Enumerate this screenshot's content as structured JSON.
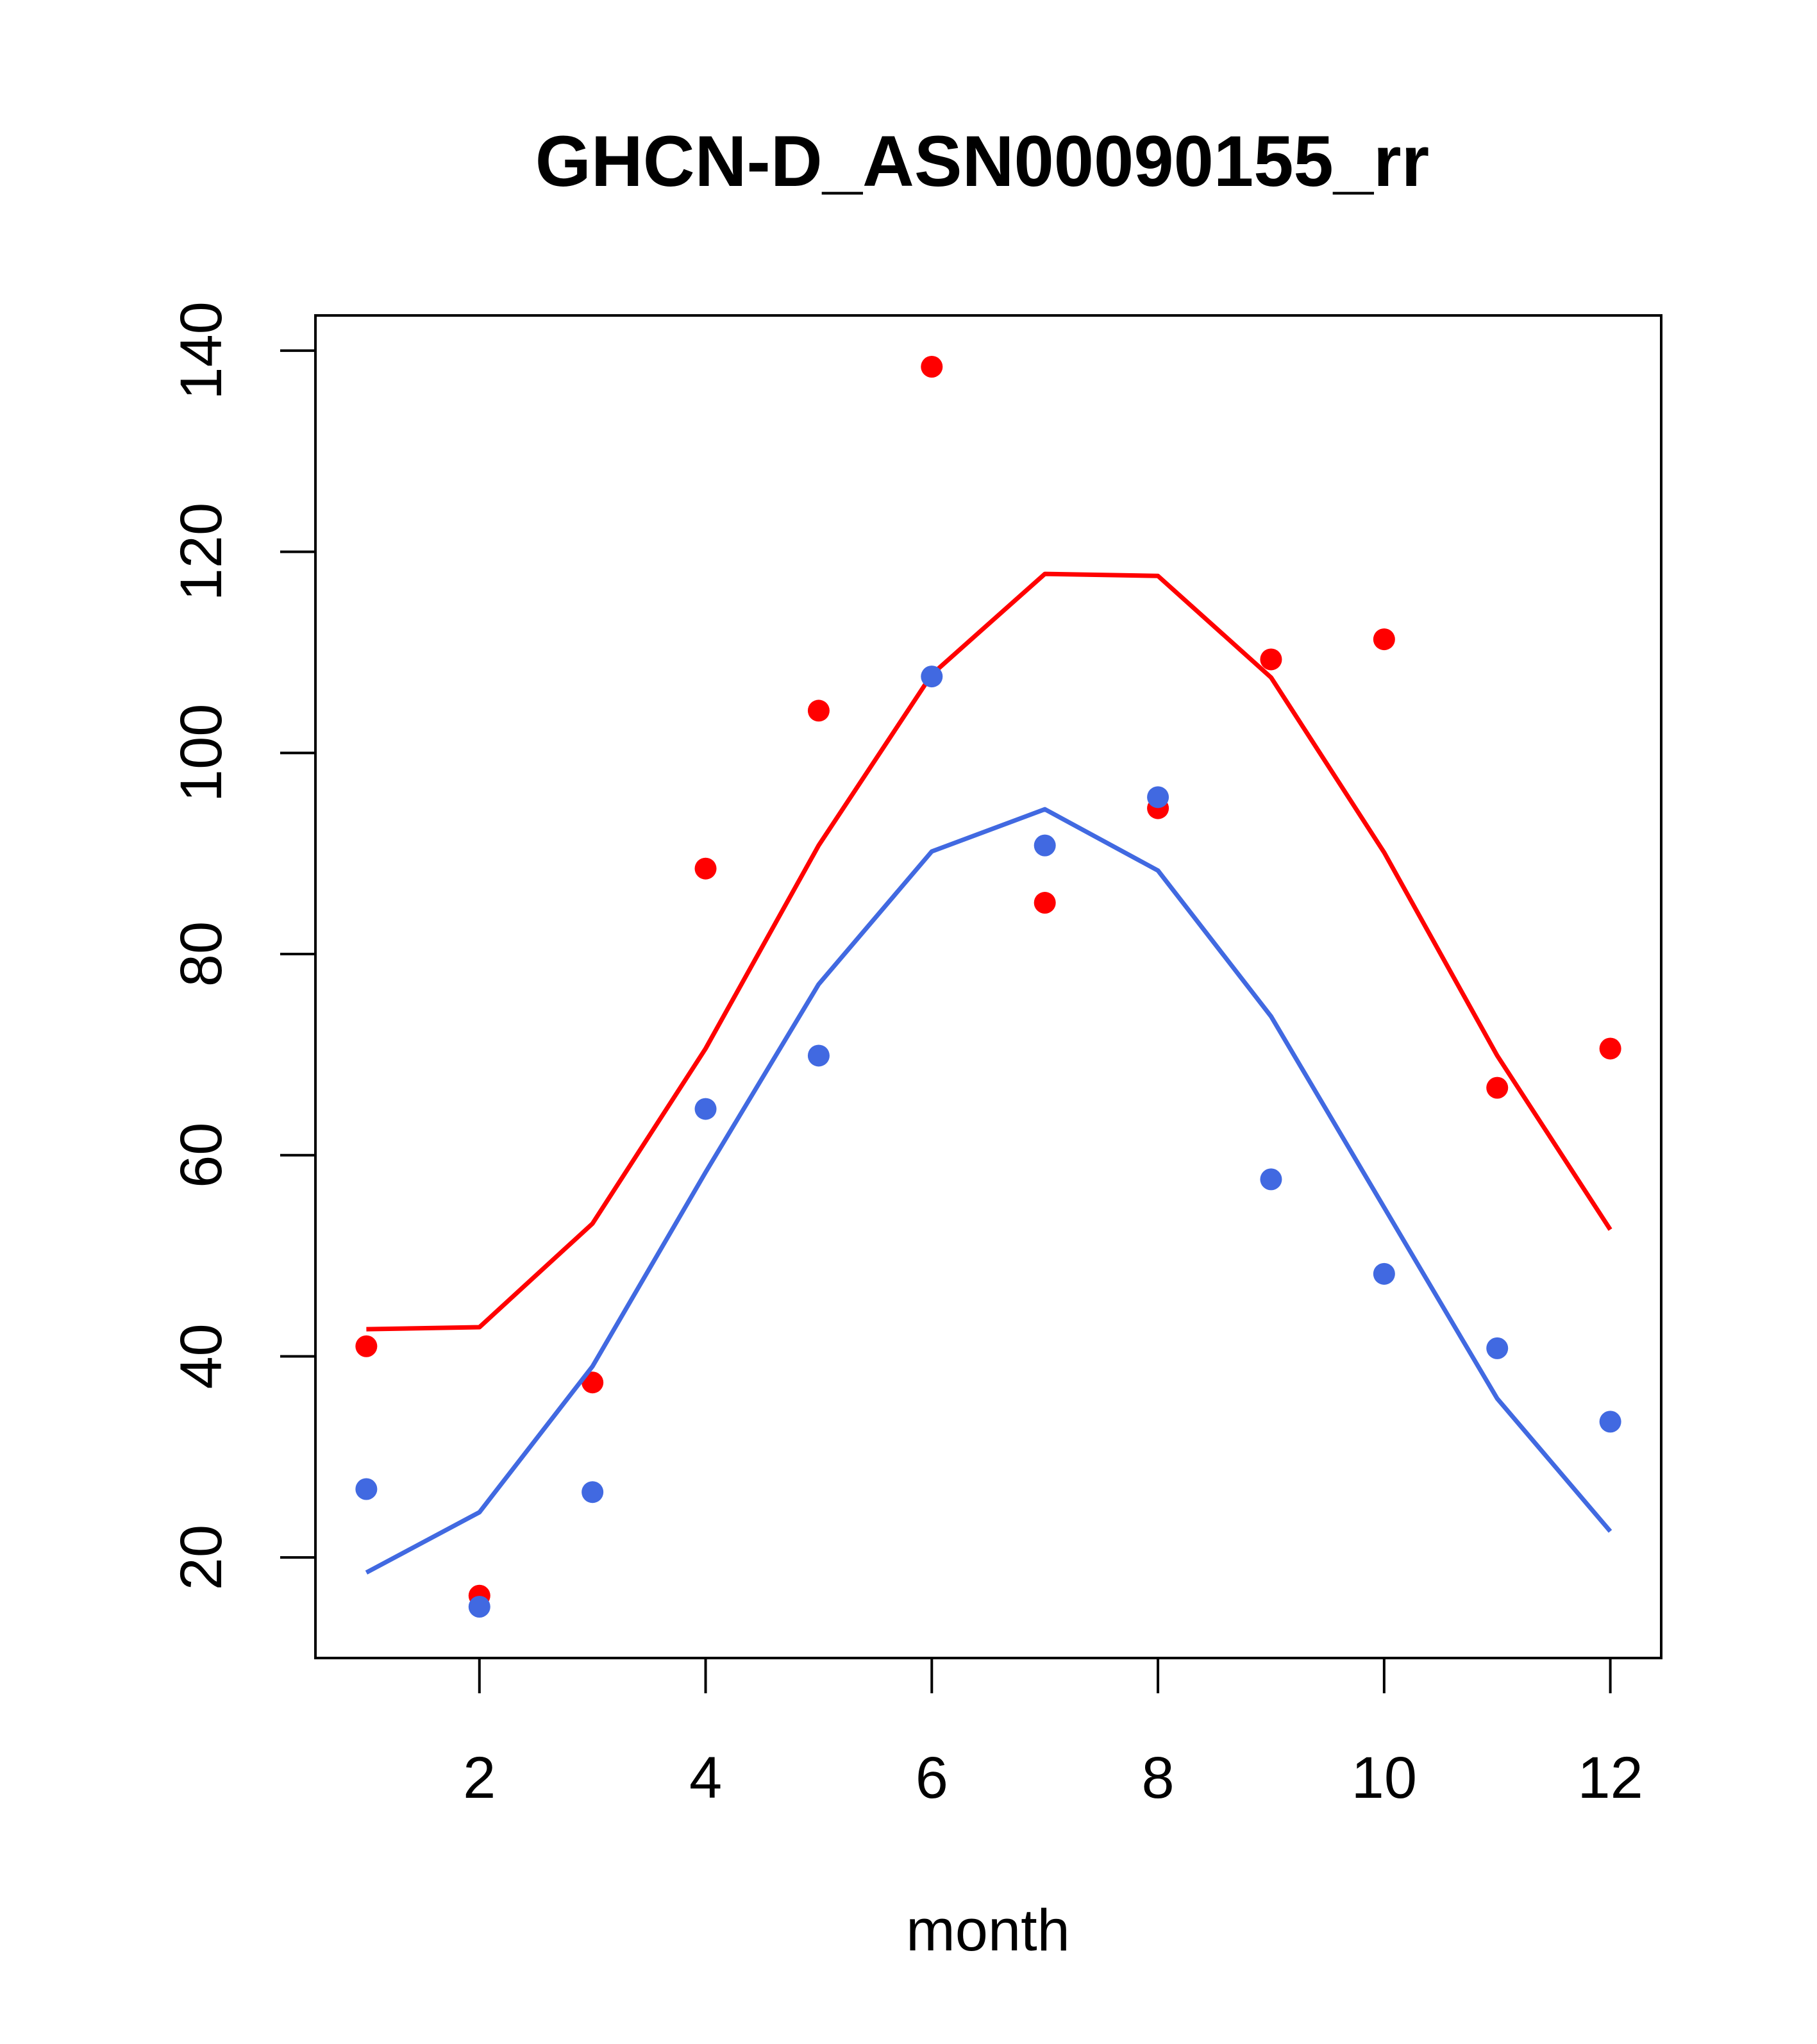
{
  "chart_data": {
    "type": "line",
    "title": "GHCN-D_ASN00090155_rr",
    "xlabel": "month",
    "ylabel": "",
    "xlim": [
      0.55,
      12.45
    ],
    "ylim": [
      10,
      143.5
    ],
    "xticks": [
      2,
      4,
      6,
      8,
      10,
      12
    ],
    "yticks": [
      20,
      40,
      60,
      80,
      100,
      120,
      140
    ],
    "grid": false,
    "legend": "none",
    "x": [
      1,
      2,
      3,
      4,
      5,
      6,
      7,
      8,
      9,
      10,
      11,
      12
    ],
    "series": [
      {
        "color": "#ff0000",
        "line": [
          42.7,
          42.9,
          53.2,
          70.6,
          90.8,
          107.8,
          117.8,
          117.6,
          107.5,
          90.1,
          69.9,
          52.6
        ],
        "points": [
          41.0,
          16.2,
          37.4,
          88.5,
          104.2,
          138.4,
          85.1,
          94.5,
          109.3,
          111.3,
          66.7,
          70.6
        ]
      },
      {
        "color": "#4169e1",
        "line": [
          18.5,
          24.5,
          39.0,
          58.3,
          77.0,
          90.2,
          94.4,
          88.3,
          73.8,
          54.8,
          35.8,
          22.6
        ],
        "points": [
          26.8,
          15.1,
          26.5,
          64.6,
          69.9,
          107.6,
          90.8,
          95.6,
          57.6,
          48.2,
          40.8,
          33.5
        ]
      }
    ]
  }
}
